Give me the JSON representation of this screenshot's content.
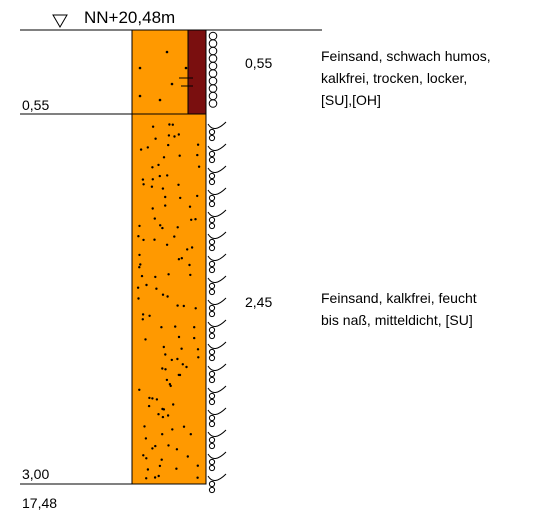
{
  "header": {
    "elevation_label": "NN+20,48m"
  },
  "layers": [
    {
      "top_depth": "0,55",
      "thickness_label": "0,55",
      "description": [
        "Feinsand, schwach humos,",
        "kalkfrei, trocken, locker,",
        "[SU],[OH]"
      ],
      "fill_color": "#ff9900",
      "humus_color": "#7a0f0f"
    },
    {
      "top_depth": "3,00",
      "thickness_label": "2,45",
      "description": [
        "Feinsand, kalkfrei, feucht",
        "bis naß, mitteldicht, [SU]"
      ],
      "fill_color": "#ff9900"
    }
  ],
  "footer": {
    "bottom_elevation": "17,48"
  }
}
